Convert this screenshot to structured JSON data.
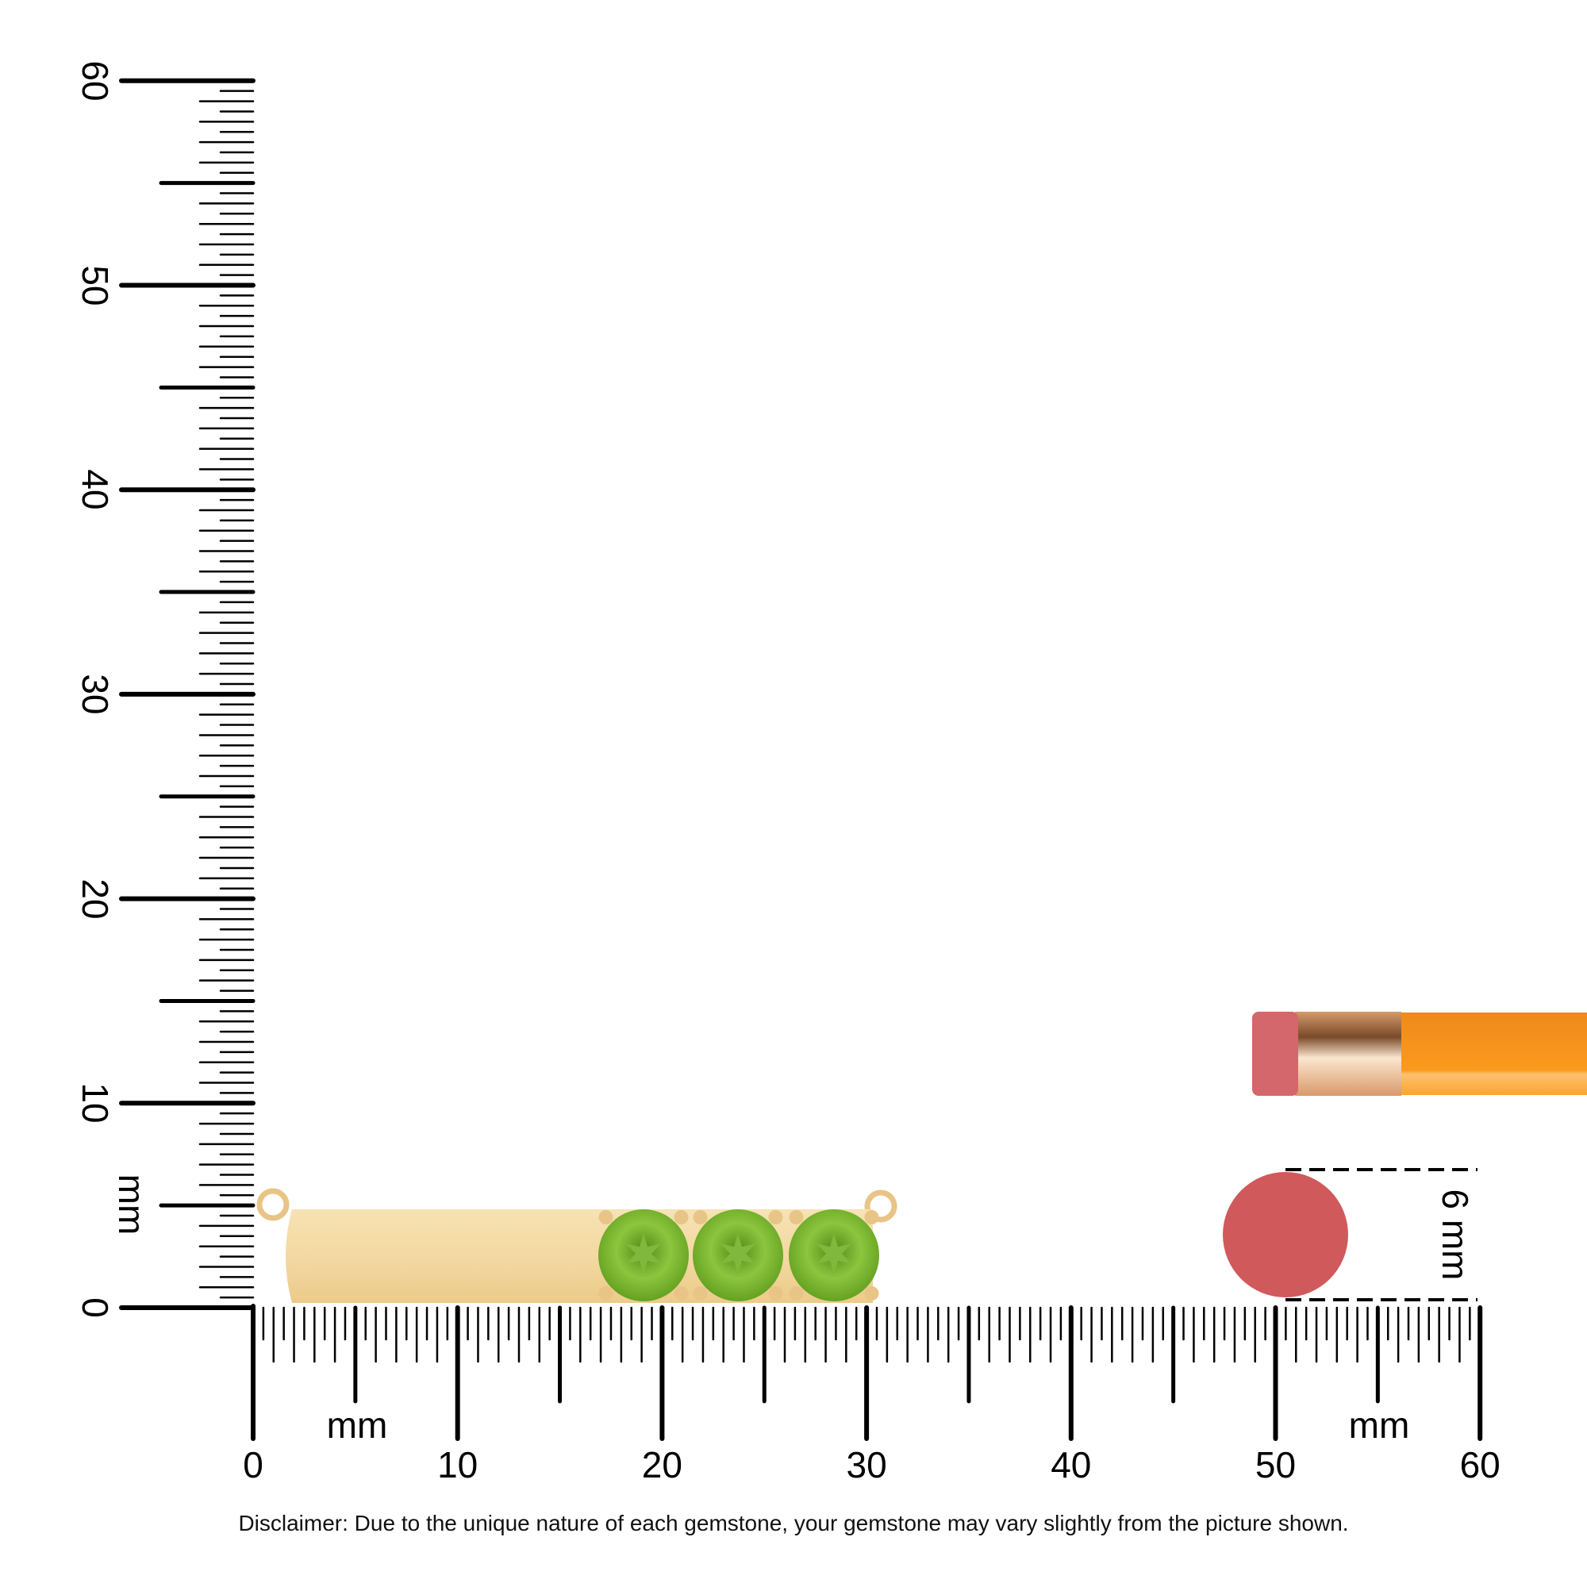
{
  "ruler": {
    "unit_label": "mm",
    "range_mm": [
      0,
      60
    ],
    "horizontal_labels": [
      "0",
      "10",
      "20",
      "30",
      "40",
      "50",
      "60"
    ],
    "vertical_labels": [
      "0",
      "10",
      "20",
      "30",
      "40",
      "50",
      "60"
    ],
    "minor_step_mm": 0.5
  },
  "reference": {
    "eraser_size_label": "6 mm",
    "eraser_size_mm": 6
  },
  "product": {
    "metal_color": "#f3d9a2",
    "gem_color": "#6fae1e",
    "gem_count": 3
  },
  "colors": {
    "eraser": "#d0595b",
    "pencil": "#f7931a",
    "ferrule": "#e8b48a"
  },
  "disclaimer": "Disclaimer: Due to the unique nature of each gemstone, your gemstone may vary slightly from the picture shown."
}
